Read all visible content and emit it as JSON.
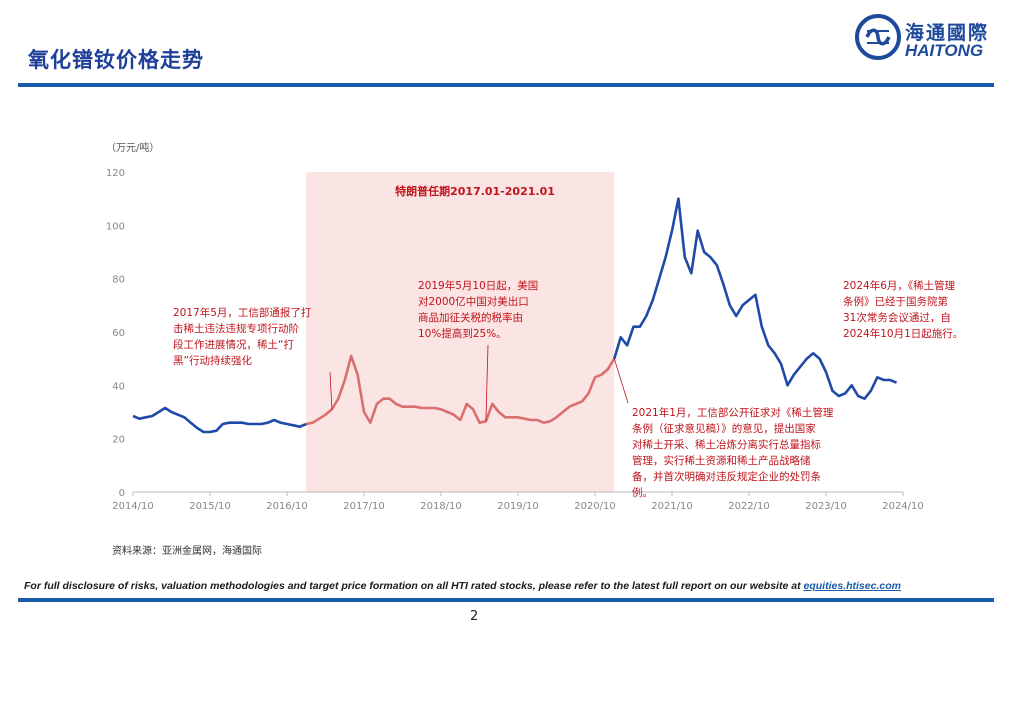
{
  "header": {
    "title": "氧化镨钕价格走势",
    "logo_cn": "海通國際",
    "logo_en": "HAITONG"
  },
  "chart_data": {
    "type": "line",
    "ylabel": "（万元/吨）",
    "ylim": [
      0,
      120
    ],
    "y_ticks": [
      "0",
      "20",
      "40",
      "60",
      "80",
      "100",
      "120"
    ],
    "x_ticks": [
      "2014/10",
      "2015/10",
      "2016/10",
      "2017/10",
      "2018/10",
      "2019/10",
      "2020/10",
      "2021/10",
      "2022/10",
      "2023/10",
      "2024/10"
    ],
    "x_range": [
      "2014-10",
      "2024-10"
    ],
    "highlight_period": {
      "label": "特朗普任期2017.01-2021.01",
      "start": "2017-01",
      "end": "2021-01"
    },
    "series": [
      {
        "color": "#1f4aa8",
        "highlight_color": "#d9706f",
        "x": [
          "2014-10",
          "2014-11",
          "2014-12",
          "2015-01",
          "2015-02",
          "2015-03",
          "2015-04",
          "2015-05",
          "2015-06",
          "2015-07",
          "2015-08",
          "2015-09",
          "2015-10",
          "2015-11",
          "2015-12",
          "2016-01",
          "2016-02",
          "2016-03",
          "2016-04",
          "2016-05",
          "2016-06",
          "2016-07",
          "2016-08",
          "2016-09",
          "2016-10",
          "2016-11",
          "2016-12",
          "2017-01",
          "2017-02",
          "2017-03",
          "2017-04",
          "2017-05",
          "2017-06",
          "2017-07",
          "2017-08",
          "2017-09",
          "2017-10",
          "2017-11",
          "2017-12",
          "2018-01",
          "2018-02",
          "2018-03",
          "2018-04",
          "2018-05",
          "2018-06",
          "2018-07",
          "2018-08",
          "2018-09",
          "2018-10",
          "2018-11",
          "2018-12",
          "2019-01",
          "2019-02",
          "2019-03",
          "2019-04",
          "2019-05",
          "2019-06",
          "2019-07",
          "2019-08",
          "2019-09",
          "2019-10",
          "2019-11",
          "2019-12",
          "2020-01",
          "2020-02",
          "2020-03",
          "2020-04",
          "2020-05",
          "2020-06",
          "2020-07",
          "2020-08",
          "2020-09",
          "2020-10",
          "2020-11",
          "2020-12",
          "2021-01",
          "2021-02",
          "2021-03",
          "2021-04",
          "2021-05",
          "2021-06",
          "2021-07",
          "2021-08",
          "2021-09",
          "2021-10",
          "2021-11",
          "2021-12",
          "2022-01",
          "2022-02",
          "2022-03",
          "2022-04",
          "2022-05",
          "2022-06",
          "2022-07",
          "2022-08",
          "2022-09",
          "2022-10",
          "2022-11",
          "2022-12",
          "2023-01",
          "2023-02",
          "2023-03",
          "2023-04",
          "2023-05",
          "2023-06",
          "2023-07",
          "2023-08",
          "2023-09",
          "2023-10",
          "2023-11",
          "2023-12",
          "2024-01",
          "2024-02",
          "2024-03",
          "2024-04",
          "2024-05",
          "2024-06",
          "2024-07",
          "2024-08",
          "2024-09"
        ],
        "values": [
          28.5,
          27.5,
          28,
          28.5,
          30,
          31.5,
          30,
          29,
          28,
          26,
          24,
          22.5,
          22.5,
          23,
          25.5,
          26,
          26,
          26,
          25.5,
          25.5,
          25.5,
          26,
          27,
          26,
          25.5,
          25,
          24.5,
          25.5,
          26,
          27.5,
          29,
          31,
          35,
          42,
          51,
          44,
          30,
          26,
          33,
          35,
          35,
          33,
          32,
          32,
          32,
          31.5,
          31.5,
          31.5,
          31,
          30,
          29,
          27,
          33,
          31,
          26,
          26.5,
          33,
          30,
          28,
          28,
          28,
          27.5,
          27,
          27,
          26,
          26.5,
          28,
          30,
          32,
          33,
          34,
          37,
          43,
          44,
          46,
          50,
          58,
          55,
          62,
          62,
          66,
          72,
          80,
          88,
          98,
          110,
          88,
          82,
          98,
          90,
          88,
          85,
          78,
          70,
          66,
          70,
          72,
          74,
          62,
          55,
          52,
          48,
          40,
          44,
          47,
          50,
          52,
          50,
          45,
          38,
          36,
          37,
          40,
          36,
          35,
          38,
          43,
          42,
          42,
          41
        ]
      }
    ]
  },
  "annotations": {
    "a2017": [
      "2017年5月，工信部通报了打",
      "击稀土违法违规专项行动阶",
      "段工作进展情况，稀土“打",
      "黑”行动持续强化"
    ],
    "a2019": [
      "2019年5月10日起，美国",
      "对2000亿中国对美出口",
      "商品加征关税的税率由",
      "10%提高到25%。"
    ],
    "a2021": [
      "2021年1月，工信部公开征求对《稀土管理",
      "条例（征求意见稿）》的意见，提出国家",
      "对稀土开采、稀土冶炼分离实行总量指标",
      "管理，实行稀土资源和稀土产品战略储",
      "备，并首次明确对违反规定企业的处罚条",
      "例。"
    ],
    "a2024": [
      "2024年6月，《稀土管理",
      "条例》已经于国务院第",
      "31次常务会议通过，自",
      "2024年10月1日起施行。"
    ]
  },
  "source": "资料来源：亚洲金属网，海通国际",
  "footer": {
    "disclaimer": "For full disclosure of risks, valuation methodologies and target price formation on all HTI rated stocks, please refer to the latest full report on our website at",
    "link": "equities.htisec.com",
    "page": "2"
  },
  "colors": {
    "brand": "#1a5aa8",
    "accent": "#c0141c"
  }
}
